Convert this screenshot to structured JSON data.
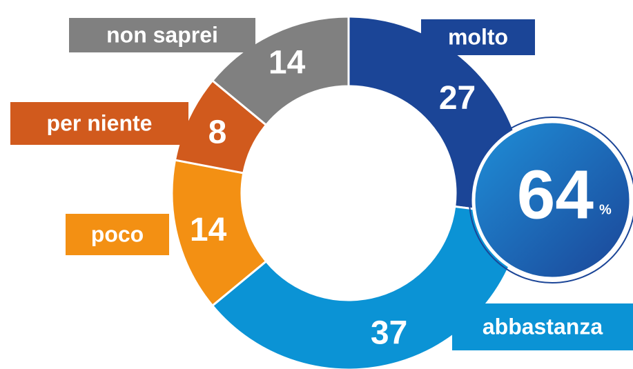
{
  "chart_data": {
    "type": "donut",
    "categories": [
      "molto",
      "abbastanza",
      "poco",
      "per niente",
      "non saprei"
    ],
    "values": [
      27,
      37,
      14,
      8,
      14
    ],
    "colors": [
      "#1b4597",
      "#0b93d5",
      "#f39013",
      "#d15a1d",
      "#808080"
    ],
    "highlight": {
      "value": 64,
      "unit": "%"
    }
  }
}
